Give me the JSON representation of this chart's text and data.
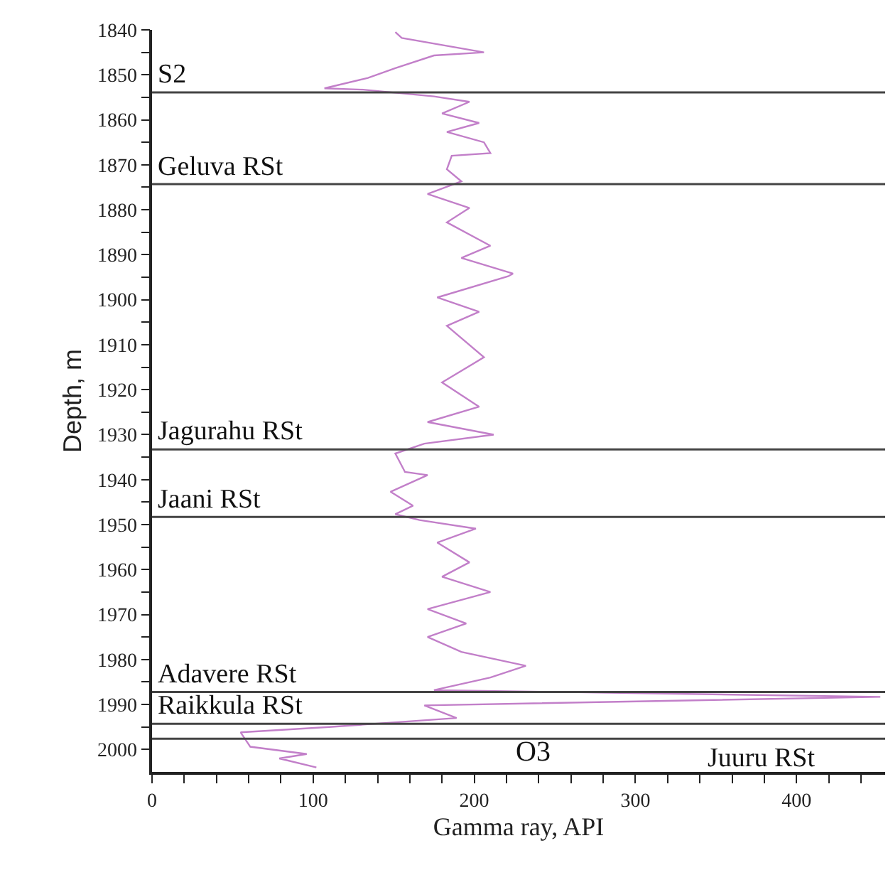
{
  "chart_data": {
    "type": "line",
    "xlabel": "Gamma ray, API",
    "ylabel": "Depth, m",
    "orientation": "horizontal",
    "x": [
      1840.5,
      1841.8,
      1845,
      1845.7,
      1848.5,
      1850.7,
      1853,
      1853.3,
      1854.8,
      1856,
      1858.6,
      1860.7,
      1862.7,
      1865,
      1867.4,
      1868,
      1871,
      1873.7,
      1876.5,
      1879.6,
      1882.8,
      1888,
      1890.7,
      1894.2,
      1894.8,
      1899.5,
      1902.7,
      1905.8,
      1912.8,
      1918.4,
      1923.8,
      1927.2,
      1930,
      1932,
      1934.2,
      1938.3,
      1939,
      1942.7,
      1945.8,
      1947.7,
      1949,
      1950.9,
      1954,
      1958.4,
      1961.6,
      1965,
      1968.8,
      1972,
      1975,
      1978.3,
      1981.4,
      1984,
      1986.8,
      1988.3,
      1990.2,
      1993,
      1995,
      1996.2,
      1999.4,
      2001,
      2002,
      2004
    ],
    "series": [
      {
        "color": "#c27fc9",
        "values": [
          151,
          155,
          206,
          175,
          151,
          134,
          107,
          131,
          175,
          197,
          180,
          203,
          183,
          206,
          210,
          186,
          183,
          192,
          171,
          197,
          183,
          210,
          192,
          224,
          221,
          177,
          203,
          183,
          206,
          180,
          203,
          171,
          212,
          169,
          151,
          157,
          171,
          148,
          162,
          151,
          166,
          201,
          177,
          197,
          180,
          210,
          171,
          195,
          171,
          192,
          232,
          210,
          175,
          452,
          169,
          189,
          110,
          55,
          61,
          96,
          79,
          102
        ]
      }
    ],
    "xlim": [
      0,
      455
    ],
    "xticks": [
      0,
      {
        "value": 20,
        "label": null
      },
      {
        "value": 40,
        "label": null
      },
      {
        "value": 60,
        "label": null
      },
      {
        "value": 80,
        "label": null
      },
      100,
      {
        "value": 120,
        "label": null
      },
      {
        "value": 140,
        "label": null
      },
      {
        "value": 160,
        "label": null
      },
      {
        "value": 180,
        "label": null
      },
      200,
      {
        "value": 220,
        "label": null
      },
      {
        "value": 240,
        "label": null
      },
      {
        "value": 260,
        "label": null
      },
      {
        "value": 280,
        "label": null
      },
      300,
      {
        "value": 320,
        "label": null
      },
      {
        "value": 340,
        "label": null
      },
      {
        "value": 360,
        "label": null
      },
      {
        "value": 380,
        "label": null
      },
      400,
      {
        "value": 420,
        "label": null
      },
      {
        "value": 440,
        "label": null
      }
    ],
    "ylim": [
      2005,
      1840
    ],
    "yticks": [
      1840,
      {
        "value": 1845,
        "label": null
      },
      1850,
      {
        "value": 1855,
        "label": null
      },
      1860,
      {
        "value": 1865,
        "label": null
      },
      1870,
      {
        "value": 1875,
        "label": null
      },
      1880,
      {
        "value": 1885,
        "label": null
      },
      1890,
      {
        "value": 1895,
        "label": null
      },
      1900,
      {
        "value": 1905,
        "label": null
      },
      1910,
      {
        "value": 1915,
        "label": null
      },
      1920,
      {
        "value": 1925,
        "label": null
      },
      1930,
      {
        "value": 1935,
        "label": null
      },
      1940,
      {
        "value": 1945,
        "label": null
      },
      1950,
      {
        "value": 1955,
        "label": null
      },
      1960,
      {
        "value": 1965,
        "label": null
      },
      1970,
      {
        "value": 1975,
        "label": null
      },
      1980,
      {
        "value": 1985,
        "label": null
      },
      1990,
      {
        "value": 1995,
        "label": null
      },
      2000
    ],
    "ref_lines": [
      {
        "axis": "y",
        "value": 1853.9,
        "label": "S2",
        "color": "#444444"
      },
      {
        "axis": "y",
        "value": 1874.3,
        "label": "Geluva RSt",
        "color": "#444444"
      },
      {
        "axis": "y",
        "value": 1933.3,
        "label": "Jagurahu RSt",
        "color": "#444444"
      },
      {
        "axis": "y",
        "value": 1948.3,
        "label": "Jaani RSt",
        "color": "#444444"
      },
      {
        "axis": "y",
        "value": 1987.2,
        "label": "Adavere RSt",
        "color": "#444444"
      },
      {
        "axis": "y",
        "value": 1994.3,
        "label": "Raikkula RSt",
        "color": "#444444"
      },
      {
        "axis": "y",
        "value": 1997.6,
        "label": "Juuru RSt",
        "color": "#444444"
      }
    ],
    "annotations": [
      "O3"
    ],
    "marker": "none",
    "line_style": "solid"
  }
}
